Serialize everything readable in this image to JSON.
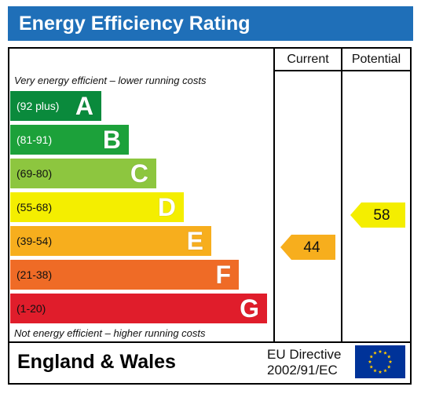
{
  "title": "Energy Efficiency Rating",
  "columns": {
    "current": "Current",
    "potential": "Potential"
  },
  "top_note": "Very energy efficient – lower running costs",
  "bottom_note": "Not energy efficient – higher running costs",
  "bands": [
    {
      "range": "(92 plus)",
      "letter": "A",
      "color": "#0a8a3c",
      "text_color": "#ffffff"
    },
    {
      "range": "(81-91)",
      "letter": "B",
      "color": "#1ca13a",
      "text_color": "#ffffff"
    },
    {
      "range": "(69-80)",
      "letter": "C",
      "color": "#8dc63f",
      "text_color": "#111111"
    },
    {
      "range": "(55-68)",
      "letter": "D",
      "color": "#f4ee00",
      "text_color": "#111111"
    },
    {
      "range": "(39-54)",
      "letter": "E",
      "color": "#f7ae1d",
      "text_color": "#111111"
    },
    {
      "range": "(21-38)",
      "letter": "F",
      "color": "#ef6b26",
      "text_color": "#111111"
    },
    {
      "range": "(1-20)",
      "letter": "G",
      "color": "#e01d2b",
      "text_color": "#111111"
    }
  ],
  "current_rating": {
    "value": "44",
    "band": "E",
    "color": "#f7ae1d"
  },
  "potential_rating": {
    "value": "58",
    "band": "D",
    "color": "#f4ee00"
  },
  "footer": {
    "region": "England & Wales",
    "directive_line1": "EU Directive",
    "directive_line2": "2002/91/EC",
    "flag_icon": "eu-flag-icon",
    "flag_color": "#003399",
    "star_color": "#ffcc00"
  }
}
